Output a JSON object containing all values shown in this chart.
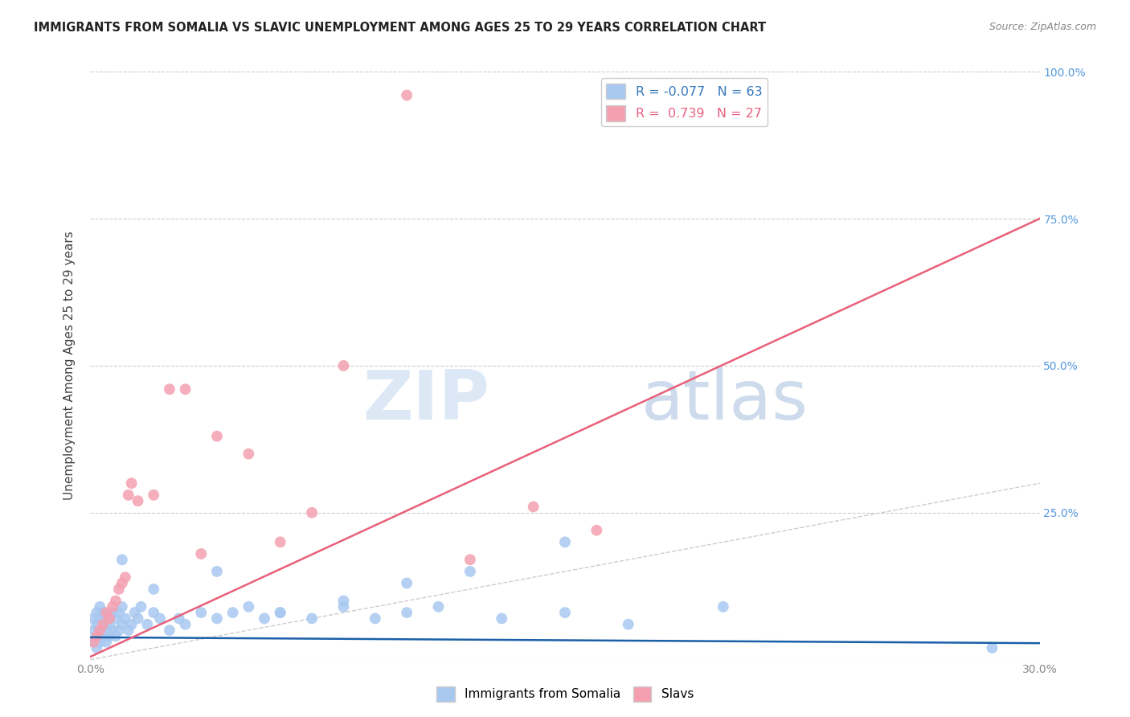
{
  "title": "IMMIGRANTS FROM SOMALIA VS SLAVIC UNEMPLOYMENT AMONG AGES 25 TO 29 YEARS CORRELATION CHART",
  "source": "Source: ZipAtlas.com",
  "ylabel": "Unemployment Among Ages 25 to 29 years",
  "xlim": [
    0.0,
    0.3
  ],
  "ylim": [
    0.0,
    1.0
  ],
  "somalia_R": -0.077,
  "somalia_N": 63,
  "slavs_R": 0.739,
  "slavs_N": 27,
  "somalia_color": "#a8c8f0",
  "slavs_color": "#f4a0b0",
  "somalia_line_color": "#1a5fa8",
  "slavs_line_color": "#e8607a",
  "diagonal_color": "#cccccc",
  "background_color": "#ffffff",
  "watermark_zip": "ZIP",
  "watermark_atlas": "atlas",
  "somalia_x": [
    0.001,
    0.001,
    0.001,
    0.002,
    0.002,
    0.002,
    0.002,
    0.003,
    0.003,
    0.003,
    0.003,
    0.004,
    0.004,
    0.004,
    0.005,
    0.005,
    0.005,
    0.006,
    0.006,
    0.007,
    0.007,
    0.008,
    0.008,
    0.009,
    0.009,
    0.01,
    0.01,
    0.011,
    0.012,
    0.013,
    0.014,
    0.015,
    0.016,
    0.018,
    0.02,
    0.022,
    0.025,
    0.028,
    0.03,
    0.035,
    0.04,
    0.045,
    0.05,
    0.055,
    0.06,
    0.07,
    0.08,
    0.09,
    0.1,
    0.11,
    0.13,
    0.15,
    0.17,
    0.2,
    0.15,
    0.12,
    0.1,
    0.08,
    0.06,
    0.04,
    0.02,
    0.01,
    0.285
  ],
  "somalia_y": [
    0.03,
    0.05,
    0.07,
    0.02,
    0.04,
    0.06,
    0.08,
    0.03,
    0.05,
    0.07,
    0.09,
    0.04,
    0.06,
    0.08,
    0.03,
    0.05,
    0.07,
    0.04,
    0.06,
    0.05,
    0.08,
    0.04,
    0.07,
    0.05,
    0.08,
    0.06,
    0.09,
    0.07,
    0.05,
    0.06,
    0.08,
    0.07,
    0.09,
    0.06,
    0.08,
    0.07,
    0.05,
    0.07,
    0.06,
    0.08,
    0.07,
    0.08,
    0.09,
    0.07,
    0.08,
    0.07,
    0.09,
    0.07,
    0.08,
    0.09,
    0.07,
    0.08,
    0.06,
    0.09,
    0.2,
    0.15,
    0.13,
    0.1,
    0.08,
    0.15,
    0.12,
    0.17,
    0.02
  ],
  "slavs_x": [
    0.001,
    0.002,
    0.003,
    0.004,
    0.005,
    0.006,
    0.007,
    0.008,
    0.009,
    0.01,
    0.011,
    0.012,
    0.013,
    0.015,
    0.02,
    0.025,
    0.03,
    0.035,
    0.04,
    0.05,
    0.06,
    0.07,
    0.08,
    0.1,
    0.12,
    0.14,
    0.16
  ],
  "slavs_y": [
    0.03,
    0.04,
    0.05,
    0.06,
    0.08,
    0.07,
    0.09,
    0.1,
    0.12,
    0.13,
    0.14,
    0.28,
    0.3,
    0.27,
    0.28,
    0.46,
    0.46,
    0.18,
    0.38,
    0.35,
    0.2,
    0.25,
    0.5,
    0.96,
    0.17,
    0.26,
    0.22
  ],
  "slavs_line_x0": 0.0,
  "slavs_line_y0": 0.005,
  "slavs_line_x1": 0.3,
  "slavs_line_y1": 0.75,
  "somalia_line_x0": 0.0,
  "somalia_line_y0": 0.038,
  "somalia_line_x1": 0.3,
  "somalia_line_y1": 0.028
}
